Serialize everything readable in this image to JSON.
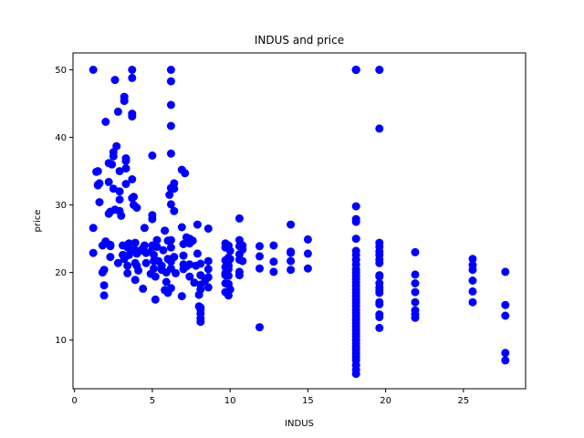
{
  "chart_data": {
    "type": "scatter",
    "title": "INDUS and price",
    "xlabel": "INDUS",
    "ylabel": "price",
    "xlim": [
      -0.1,
      29.0
    ],
    "ylim": [
      2.8,
      52.5
    ],
    "xticks": [
      0,
      5,
      10,
      15,
      20,
      25
    ],
    "yticks": [
      10,
      20,
      30,
      40,
      50
    ],
    "xtick_labels": [
      "0",
      "5",
      "10",
      "15",
      "20",
      "25"
    ],
    "ytick_labels": [
      "10",
      "20",
      "30",
      "40",
      "50"
    ],
    "grid": false,
    "marker_color": "#0000ff",
    "points": [
      [
        1.2,
        50
      ],
      [
        1.2,
        26.6
      ],
      [
        1.2,
        22.9
      ],
      [
        1.4,
        34.9
      ],
      [
        1.5,
        33
      ],
      [
        1.5,
        32.9
      ],
      [
        1.5,
        35
      ],
      [
        1.6,
        30.4
      ],
      [
        1.6,
        33.2
      ],
      [
        1.8,
        24
      ],
      [
        1.8,
        20
      ],
      [
        1.9,
        16.6
      ],
      [
        1.9,
        18.1
      ],
      [
        1.9,
        20.4
      ],
      [
        2,
        42.3
      ],
      [
        2,
        24.3
      ],
      [
        2,
        24.6
      ],
      [
        2.2,
        33.4
      ],
      [
        2.2,
        28.7
      ],
      [
        2.2,
        36.2
      ],
      [
        2.3,
        22.3
      ],
      [
        2.3,
        23.9
      ],
      [
        2.3,
        29
      ],
      [
        2.3,
        24.1
      ],
      [
        2.4,
        36
      ],
      [
        2.5,
        37.2
      ],
      [
        2.5,
        37.8
      ],
      [
        2.5,
        32.4
      ],
      [
        2.6,
        48.5
      ],
      [
        2.6,
        29.3
      ],
      [
        2.7,
        38.7
      ],
      [
        2.8,
        43.8
      ],
      [
        2.8,
        21.4
      ],
      [
        2.9,
        35
      ],
      [
        2.9,
        32
      ],
      [
        2.9,
        30.8
      ],
      [
        2.9,
        29.1
      ],
      [
        3,
        28.4
      ],
      [
        3.1,
        24
      ],
      [
        3.1,
        22.6
      ],
      [
        3.2,
        22
      ],
      [
        3.2,
        45.4
      ],
      [
        3.2,
        46
      ],
      [
        3.3,
        36.5
      ],
      [
        3.3,
        36.9
      ],
      [
        3.3,
        35.4
      ],
      [
        3.3,
        33.1
      ],
      [
        3.4,
        24.1
      ],
      [
        3.4,
        23.7
      ],
      [
        3.4,
        21
      ],
      [
        3.4,
        19.9
      ],
      [
        3.5,
        22.6
      ],
      [
        3.5,
        24.3
      ],
      [
        3.6,
        23.4
      ],
      [
        3.7,
        50
      ],
      [
        3.7,
        48.8
      ],
      [
        3.7,
        43.5
      ],
      [
        3.7,
        43.1
      ],
      [
        3.7,
        33.8
      ],
      [
        3.7,
        31
      ],
      [
        3.8,
        31.2
      ],
      [
        3.8,
        30
      ],
      [
        3.9,
        24.4
      ],
      [
        3.9,
        23.3
      ],
      [
        3.9,
        21.4
      ],
      [
        3.9,
        18.9
      ],
      [
        4,
        29.6
      ],
      [
        4,
        22.8
      ],
      [
        4,
        21
      ],
      [
        4.1,
        20.3
      ],
      [
        4.2,
        23.2
      ],
      [
        4.4,
        23.6
      ],
      [
        4.4,
        17.6
      ],
      [
        4.5,
        26.6
      ],
      [
        4.5,
        24
      ],
      [
        4.6,
        22.9
      ],
      [
        4.6,
        21.4
      ],
      [
        4.9,
        23.1
      ],
      [
        4.9,
        19.8
      ],
      [
        5,
        28.5
      ],
      [
        5,
        27.9
      ],
      [
        5,
        37.3
      ],
      [
        5,
        24
      ],
      [
        5.1,
        21.7
      ],
      [
        5.1,
        20.6
      ],
      [
        5.1,
        22.6
      ],
      [
        5.2,
        19.4
      ],
      [
        5.2,
        16
      ],
      [
        5.3,
        23.8
      ],
      [
        5.3,
        24.8
      ],
      [
        5.4,
        21.7
      ],
      [
        5.6,
        20.4
      ],
      [
        5.6,
        21
      ],
      [
        5.7,
        23.3
      ],
      [
        5.8,
        26.2
      ],
      [
        5.8,
        17.4
      ],
      [
        5.9,
        20
      ],
      [
        5.9,
        18.6
      ],
      [
        6,
        17
      ],
      [
        6,
        22
      ],
      [
        6,
        24.7
      ],
      [
        6.1,
        31.5
      ],
      [
        6.2,
        50
      ],
      [
        6.2,
        48.3
      ],
      [
        6.2,
        44.8
      ],
      [
        6.2,
        41.7
      ],
      [
        6.2,
        37.6
      ],
      [
        6.2,
        30.1
      ],
      [
        6.2,
        32.5
      ],
      [
        6.2,
        24.8
      ],
      [
        6.2,
        23.7
      ],
      [
        6.2,
        21.6
      ],
      [
        6.2,
        20.6
      ],
      [
        6.2,
        17.7
      ],
      [
        6.4,
        33.2
      ],
      [
        6.4,
        32.4
      ],
      [
        6.4,
        29.1
      ],
      [
        6.4,
        22.3
      ],
      [
        6.5,
        19.9
      ],
      [
        6.9,
        35.2
      ],
      [
        6.9,
        26.7
      ],
      [
        6.9,
        16.5
      ],
      [
        7,
        24.2
      ],
      [
        7,
        22.5
      ],
      [
        7,
        21.2
      ],
      [
        7,
        20.5
      ],
      [
        7.1,
        34.7
      ],
      [
        7.2,
        25.2
      ],
      [
        7.2,
        20.9
      ],
      [
        7.4,
        25
      ],
      [
        7.4,
        24.3
      ],
      [
        7.4,
        21.2
      ],
      [
        7.4,
        19.4
      ],
      [
        7.6,
        24.7
      ],
      [
        7.7,
        18.5
      ],
      [
        7.8,
        21
      ],
      [
        7.9,
        27.1
      ],
      [
        7.9,
        22.8
      ],
      [
        8,
        16.7
      ],
      [
        8,
        15
      ],
      [
        8.1,
        21.3
      ],
      [
        8.1,
        19.6
      ],
      [
        8.1,
        18.2
      ],
      [
        8.1,
        17.5
      ],
      [
        8.1,
        14.5
      ],
      [
        8.1,
        13.9
      ],
      [
        8.1,
        13.2
      ],
      [
        8.1,
        12.7
      ],
      [
        8.1,
        14.8
      ],
      [
        8.4,
        18.8
      ],
      [
        8.6,
        26.5
      ],
      [
        8.6,
        21.7
      ],
      [
        8.6,
        20.5
      ],
      [
        8.6,
        19.3
      ],
      [
        8.6,
        17.8
      ],
      [
        9.7,
        24.3
      ],
      [
        9.7,
        23.7
      ],
      [
        9.7,
        21.8
      ],
      [
        9.7,
        20.8
      ],
      [
        9.7,
        19.9
      ],
      [
        9.7,
        19.6
      ],
      [
        9.7,
        18.4
      ],
      [
        9.7,
        17.1
      ],
      [
        9.9,
        24
      ],
      [
        9.9,
        22.2
      ],
      [
        9.9,
        21.7
      ],
      [
        9.9,
        21
      ],
      [
        9.9,
        20.5
      ],
      [
        9.9,
        19.5
      ],
      [
        9.9,
        18.3
      ],
      [
        9.9,
        16.6
      ],
      [
        10,
        17.5
      ],
      [
        10,
        23.2
      ],
      [
        10,
        22
      ],
      [
        10.6,
        28
      ],
      [
        10.6,
        24.8
      ],
      [
        10.6,
        23.9
      ],
      [
        10.6,
        22.7
      ],
      [
        10.6,
        21.9
      ],
      [
        10.6,
        20.1
      ],
      [
        10.6,
        19.6
      ],
      [
        10.8,
        24
      ],
      [
        10.8,
        23.4
      ],
      [
        10.8,
        21.7
      ],
      [
        11.9,
        23.9
      ],
      [
        11.9,
        22.4
      ],
      [
        11.9,
        20.6
      ],
      [
        11.9,
        11.9
      ],
      [
        12.8,
        24
      ],
      [
        12.8,
        21.6
      ],
      [
        12.8,
        20.1
      ],
      [
        13.9,
        27.1
      ],
      [
        13.9,
        23.1
      ],
      [
        13.9,
        22.9
      ],
      [
        13.9,
        21.7
      ],
      [
        13.9,
        20.4
      ],
      [
        15,
        24.9
      ],
      [
        15,
        22.8
      ],
      [
        15,
        20.6
      ],
      [
        18.1,
        50
      ],
      [
        18.1,
        50
      ],
      [
        18.1,
        50
      ],
      [
        18.1,
        50
      ],
      [
        18.1,
        50
      ],
      [
        18.1,
        29.8
      ],
      [
        18.1,
        27.9
      ],
      [
        18.1,
        27.5
      ],
      [
        18.1,
        25
      ],
      [
        18.1,
        23.2
      ],
      [
        18.1,
        22.6
      ],
      [
        18.1,
        21.9
      ],
      [
        18.1,
        21.2
      ],
      [
        18.1,
        20.5
      ],
      [
        18.1,
        20
      ],
      [
        18.1,
        19.5
      ],
      [
        18.1,
        19
      ],
      [
        18.1,
        18.5
      ],
      [
        18.1,
        18
      ],
      [
        18.1,
        17.5
      ],
      [
        18.1,
        17
      ],
      [
        18.1,
        16.5
      ],
      [
        18.1,
        16
      ],
      [
        18.1,
        15.5
      ],
      [
        18.1,
        15
      ],
      [
        18.1,
        14.5
      ],
      [
        18.1,
        14
      ],
      [
        18.1,
        13.5
      ],
      [
        18.1,
        13
      ],
      [
        18.1,
        12.5
      ],
      [
        18.1,
        12
      ],
      [
        18.1,
        11.5
      ],
      [
        18.1,
        11
      ],
      [
        18.1,
        10.5
      ],
      [
        18.1,
        10
      ],
      [
        18.1,
        9.5
      ],
      [
        18.1,
        9
      ],
      [
        18.1,
        8.5
      ],
      [
        18.1,
        8
      ],
      [
        18.1,
        7.5
      ],
      [
        18.1,
        7
      ],
      [
        18.1,
        6.3
      ],
      [
        18.1,
        5.6
      ],
      [
        18.1,
        5
      ],
      [
        19.6,
        50
      ],
      [
        19.6,
        50
      ],
      [
        19.6,
        41.3
      ],
      [
        19.6,
        24.4
      ],
      [
        19.6,
        23.8
      ],
      [
        19.6,
        23.1
      ],
      [
        19.6,
        22.6
      ],
      [
        19.6,
        21.9
      ],
      [
        19.6,
        21.4
      ],
      [
        19.6,
        19.6
      ],
      [
        19.6,
        19.4
      ],
      [
        19.6,
        18.4
      ],
      [
        19.6,
        17.8
      ],
      [
        19.6,
        17.4
      ],
      [
        19.6,
        17
      ],
      [
        19.6,
        15.6
      ],
      [
        19.6,
        15.3
      ],
      [
        19.6,
        13.8
      ],
      [
        19.6,
        13.4
      ],
      [
        19.6,
        11.8
      ],
      [
        21.9,
        23
      ],
      [
        21.9,
        19.7
      ],
      [
        21.9,
        18.4
      ],
      [
        21.9,
        17.1
      ],
      [
        21.9,
        15.6
      ],
      [
        21.9,
        14.4
      ],
      [
        21.9,
        13.8
      ],
      [
        21.9,
        13.3
      ],
      [
        25.6,
        22
      ],
      [
        25.6,
        21.1
      ],
      [
        25.6,
        20.4
      ],
      [
        25.6,
        18.8
      ],
      [
        25.6,
        17.2
      ],
      [
        25.6,
        15.6
      ],
      [
        27.7,
        20.1
      ],
      [
        27.7,
        15.2
      ],
      [
        27.7,
        13.6
      ],
      [
        27.7,
        8.1
      ],
      [
        27.7,
        7
      ]
    ]
  }
}
